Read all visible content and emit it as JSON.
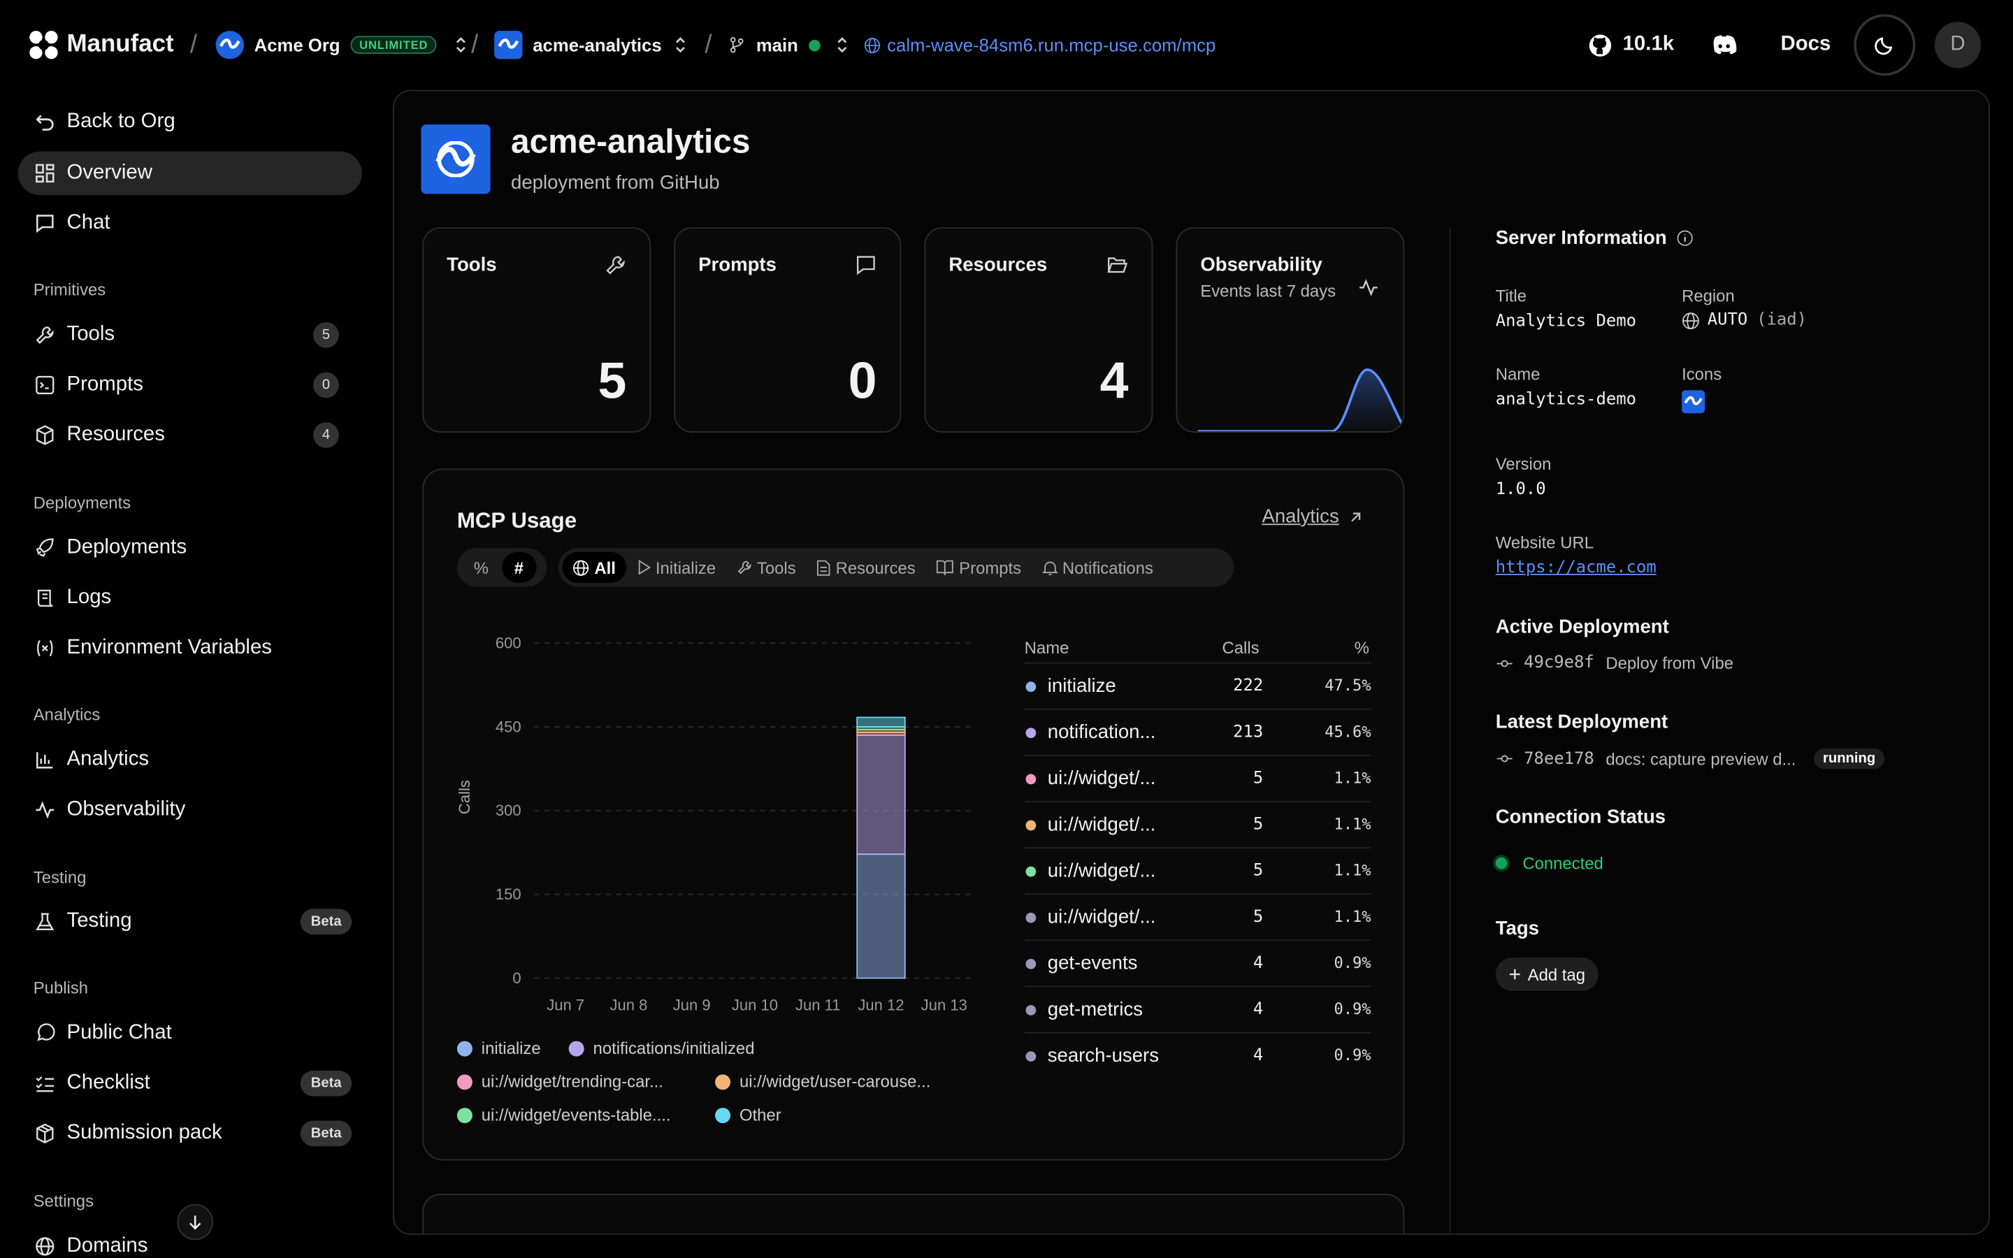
{
  "brand": {
    "name": "Manufact"
  },
  "topbar": {
    "org_name": "Acme Org",
    "org_badge": "UNLIMITED",
    "project_name": "acme-analytics",
    "branch": "main",
    "url": "calm-wave-84sm6.run.mcp-use.com/mcp",
    "github_stars": "10.1k",
    "docs_label": "Docs",
    "user_initial": "D"
  },
  "sidebar": {
    "back_label": "Back to Org",
    "overview_label": "Overview",
    "chat_label": "Chat",
    "primitives_header": "Primitives",
    "tools_label": "Tools",
    "tools_count": "5",
    "prompts_label": "Prompts",
    "prompts_count": "0",
    "resources_label": "Resources",
    "resources_count": "4",
    "deployments_header": "Deployments",
    "deployments_label": "Deployments",
    "logs_label": "Logs",
    "env_label": "Environment Variables",
    "analytics_header": "Analytics",
    "analytics_label": "Analytics",
    "observability_label": "Observability",
    "testing_header": "Testing",
    "testing_label": "Testing",
    "testing_badge": "Beta",
    "publish_header": "Publish",
    "public_chat_label": "Public Chat",
    "checklist_label": "Checklist",
    "checklist_badge": "Beta",
    "submission_label": "Submission pack",
    "submission_badge": "Beta",
    "settings_header": "Settings",
    "domains_label": "Domains"
  },
  "header": {
    "title": "acme-analytics",
    "subtitle": "deployment from GitHub"
  },
  "stats": {
    "tools_label": "Tools",
    "tools_value": "5",
    "prompts_label": "Prompts",
    "prompts_value": "0",
    "resources_label": "Resources",
    "resources_value": "4",
    "observability_label": "Observability",
    "observability_sub": "Events last 7 days"
  },
  "usage": {
    "title": "MCP Usage",
    "analytics_link": "Analytics",
    "mode_percent": "%",
    "mode_count": "#",
    "filters": [
      "All",
      "Initialize",
      "Tools",
      "Resources",
      "Prompts",
      "Notifications"
    ],
    "table_headers": {
      "name": "Name",
      "calls": "Calls",
      "pct": "%"
    },
    "rows": [
      {
        "name": "initialize",
        "calls": "222",
        "pct": "47.5%",
        "color": "#8fb4ea"
      },
      {
        "name": "notification...",
        "calls": "213",
        "pct": "45.6%",
        "color": "#b7a5ec"
      },
      {
        "name": "ui://widget/...",
        "calls": "5",
        "pct": "1.1%",
        "color": "#f19bc2"
      },
      {
        "name": "ui://widget/...",
        "calls": "5",
        "pct": "1.1%",
        "color": "#f4b478"
      },
      {
        "name": "ui://widget/...",
        "calls": "5",
        "pct": "1.1%",
        "color": "#7de0a2"
      },
      {
        "name": "ui://widget/...",
        "calls": "5",
        "pct": "1.1%",
        "color": "#9a9ab8"
      },
      {
        "name": "get-events",
        "calls": "4",
        "pct": "0.9%",
        "color": "#9a9ab8"
      },
      {
        "name": "get-metrics",
        "calls": "4",
        "pct": "0.9%",
        "color": "#9a9ab8"
      },
      {
        "name": "search-users",
        "calls": "4",
        "pct": "0.9%",
        "color": "#9a9ab8"
      }
    ],
    "legend": [
      {
        "name": "initialize",
        "color": "#8fb4ea"
      },
      {
        "name": "notifications/initialized",
        "color": "#b7a5ec"
      },
      {
        "name": "ui://widget/trending-car...",
        "color": "#f19bc2"
      },
      {
        "name": "ui://widget/user-carouse...",
        "color": "#f4b478"
      },
      {
        "name": "ui://widget/events-table....",
        "color": "#7de0a2"
      },
      {
        "name": "Other",
        "color": "#67d8ef"
      }
    ]
  },
  "chart_data": {
    "type": "bar",
    "stacked": true,
    "ylabel": "Calls",
    "ylim": [
      0,
      600
    ],
    "yticks": [
      0,
      150,
      300,
      450,
      600
    ],
    "categories": [
      "Jun 7",
      "Jun 8",
      "Jun 9",
      "Jun 10",
      "Jun 11",
      "Jun 12",
      "Jun 13"
    ],
    "series": [
      {
        "name": "initialize",
        "color": "#8fb4ea",
        "values": [
          0,
          0,
          0,
          0,
          0,
          222,
          0
        ]
      },
      {
        "name": "notifications/initialized",
        "color": "#b7a5ec",
        "values": [
          0,
          0,
          0,
          0,
          0,
          213,
          0
        ]
      },
      {
        "name": "ui://widget/trending-car...",
        "color": "#f19bc2",
        "values": [
          0,
          0,
          0,
          0,
          0,
          5,
          0
        ]
      },
      {
        "name": "ui://widget/user-carouse...",
        "color": "#f4b478",
        "values": [
          0,
          0,
          0,
          0,
          0,
          5,
          0
        ]
      },
      {
        "name": "ui://widget/events-table....",
        "color": "#7de0a2",
        "values": [
          0,
          0,
          0,
          0,
          0,
          5,
          0
        ]
      },
      {
        "name": "Other",
        "color": "#67d8ef",
        "values": [
          0,
          0,
          0,
          0,
          0,
          17,
          0
        ]
      }
    ]
  },
  "server": {
    "header": "Server Information",
    "title_label": "Title",
    "title_value": "Analytics Demo",
    "region_label": "Region",
    "region_value": "AUTO",
    "region_code": "(iad)",
    "name_label": "Name",
    "name_value": "analytics-demo",
    "icons_label": "Icons",
    "version_label": "Version",
    "version_value": "1.0.0",
    "website_label": "Website URL",
    "website_value": "https://acme.com",
    "active_header": "Active Deployment",
    "active_hash": "49c9e8f",
    "active_msg": "Deploy from Vibe",
    "latest_header": "Latest Deployment",
    "latest_hash": "78ee178",
    "latest_msg": "docs: capture preview d...",
    "latest_status": "running",
    "conn_header": "Connection Status",
    "conn_value": "Connected",
    "tags_header": "Tags",
    "add_tag": "Add tag"
  },
  "colors": {
    "accent_green": "#2ccf73",
    "link_blue": "#5b8ff9",
    "brand_blue": "#1e63e0"
  }
}
